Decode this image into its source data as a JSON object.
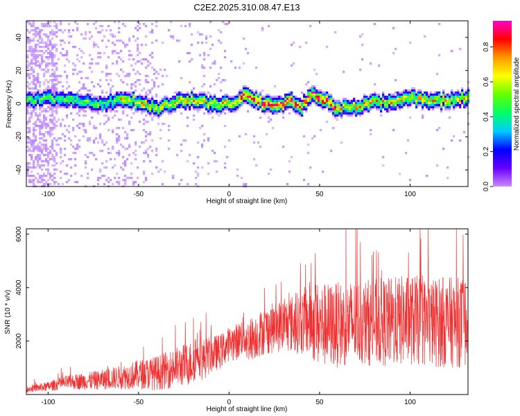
{
  "figure": {
    "title": "C2E2.2025.310.08.47.E13"
  },
  "chart_data": [
    {
      "type": "heatmap",
      "xlabel": "Height of straight line (km)",
      "ylabel": "Frequency (Hz)",
      "xlim": [
        -112,
        132
      ],
      "ylim": [
        -50,
        50
      ],
      "xticks": [
        -100,
        -50,
        0,
        50,
        100
      ],
      "yticks": [
        -40,
        -20,
        0,
        20,
        40
      ],
      "colorbar": {
        "label": "Normalized spectral amplitude",
        "range": [
          0.0,
          0.95
        ],
        "ticks": [
          0.0,
          0.2,
          0.4,
          0.6,
          0.8
        ],
        "colormap": [
          "#cc88ff",
          "#6600ff",
          "#0000ff",
          "#00ccff",
          "#00ff66",
          "#66ff00",
          "#ffff00",
          "#ff9900",
          "#ff0000",
          "#ff00cc"
        ]
      },
      "ridge_centre_hz": [
        [
          -112,
          2
        ],
        [
          -100,
          3
        ],
        [
          -90,
          2
        ],
        [
          -80,
          1
        ],
        [
          -70,
          0
        ],
        [
          -60,
          2
        ],
        [
          -50,
          1
        ],
        [
          -40,
          -3
        ],
        [
          -30,
          1
        ],
        [
          -20,
          2
        ],
        [
          -10,
          0
        ],
        [
          0,
          0
        ],
        [
          5,
          1
        ],
        [
          10,
          6
        ],
        [
          15,
          2
        ],
        [
          20,
          0
        ],
        [
          30,
          0
        ],
        [
          35,
          1
        ],
        [
          40,
          -2
        ],
        [
          45,
          5
        ],
        [
          50,
          4
        ],
        [
          55,
          1
        ],
        [
          60,
          -3
        ],
        [
          70,
          -2
        ],
        [
          80,
          1
        ],
        [
          90,
          0
        ],
        [
          100,
          4
        ],
        [
          110,
          1
        ],
        [
          120,
          2
        ],
        [
          132,
          4
        ]
      ]
    },
    {
      "type": "line",
      "xlabel": "Height of straight line (km)",
      "ylabel": "SNR (10 * v/v)",
      "xlim": [
        -112,
        132
      ],
      "ylim": [
        0,
        6200
      ],
      "xticks": [
        -100,
        -50,
        0,
        50,
        100
      ],
      "yticks": [
        2000,
        4000,
        6000
      ],
      "series_color": "#f03030",
      "envelope": {
        "x": [
          -112,
          -100,
          -90,
          -80,
          -70,
          -60,
          -50,
          -40,
          -30,
          -20,
          -17,
          -15,
          -10,
          -5,
          0,
          5,
          8,
          10,
          20,
          30,
          40,
          45,
          50,
          60,
          70,
          80,
          90,
          100,
          110,
          120,
          132
        ],
        "mean": [
          200,
          300,
          450,
          500,
          550,
          650,
          750,
          800,
          1000,
          1200,
          1800,
          1300,
          1500,
          1600,
          1900,
          2000,
          2300,
          2000,
          2400,
          2600,
          2700,
          2800,
          2600,
          2600,
          2700,
          2700,
          2700,
          2800,
          2700,
          2700,
          2700
        ],
        "spread": [
          120,
          180,
          260,
          320,
          380,
          450,
          550,
          650,
          750,
          850,
          1000,
          800,
          700,
          650,
          650,
          700,
          800,
          800,
          900,
          1000,
          1200,
          1500,
          1600,
          1600,
          1600,
          1650,
          1700,
          1700,
          1700,
          1700,
          1700
        ]
      }
    }
  ]
}
